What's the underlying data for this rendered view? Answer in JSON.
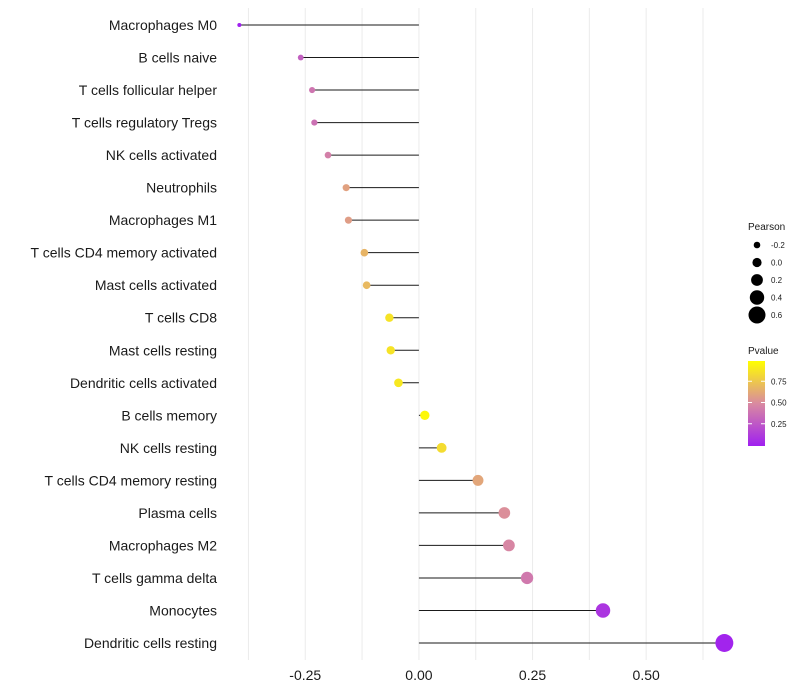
{
  "chart_data": {
    "type": "lollipop",
    "title": "",
    "xlabel": "",
    "ylabel": "",
    "xlim": [
      -0.42,
      0.68
    ],
    "x_ticks": [
      -0.25,
      0.0,
      0.25,
      0.5
    ],
    "x_tick_labels": [
      "-0.25",
      "0.00",
      "0.25",
      "0.50"
    ],
    "grid": "vertical",
    "points": [
      {
        "label": "Macrophages M0",
        "value": -0.395,
        "pvalue": 0.0
      },
      {
        "label": "B cells naive",
        "value": -0.26,
        "pvalue": 0.3
      },
      {
        "label": "T cells follicular helper",
        "value": -0.235,
        "pvalue": 0.4
      },
      {
        "label": "T cells regulatory  Tregs ",
        "value": -0.23,
        "pvalue": 0.38
      },
      {
        "label": "NK cells activated",
        "value": -0.2,
        "pvalue": 0.45
      },
      {
        "label": "Neutrophils",
        "value": -0.16,
        "pvalue": 0.6
      },
      {
        "label": "Macrophages M1",
        "value": -0.155,
        "pvalue": 0.58
      },
      {
        "label": "T cells CD4 memory activated",
        "value": -0.12,
        "pvalue": 0.68
      },
      {
        "label": "Mast cells activated",
        "value": -0.115,
        "pvalue": 0.7
      },
      {
        "label": "T cells CD8",
        "value": -0.065,
        "pvalue": 0.88
      },
      {
        "label": "Mast cells resting",
        "value": -0.062,
        "pvalue": 0.88
      },
      {
        "label": "Dendritic cells activated",
        "value": -0.045,
        "pvalue": 0.9
      },
      {
        "label": "B cells memory",
        "value": 0.013,
        "pvalue": 0.97
      },
      {
        "label": "NK cells resting",
        "value": 0.05,
        "pvalue": 0.85
      },
      {
        "label": "T cells CD4 memory resting",
        "value": 0.13,
        "pvalue": 0.62
      },
      {
        "label": "Plasma cells",
        "value": 0.188,
        "pvalue": 0.52
      },
      {
        "label": "Macrophages M2",
        "value": 0.198,
        "pvalue": 0.48
      },
      {
        "label": "T cells gamma delta",
        "value": 0.238,
        "pvalue": 0.42
      },
      {
        "label": "Monocytes",
        "value": 0.405,
        "pvalue": 0.1
      },
      {
        "label": "Dendritic cells resting",
        "value": 0.672,
        "pvalue": 0.02
      }
    ],
    "legend_size": {
      "title": "Pearson",
      "values": [
        -0.2,
        0.0,
        0.2,
        0.4,
        0.6
      ],
      "labels": [
        "-0.2",
        "0.0",
        "0.2",
        "0.4",
        "0.6"
      ]
    },
    "legend_color": {
      "title": "Pvalue",
      "labels": [
        "0.75",
        "0.50",
        "0.25"
      ],
      "label_values": [
        0.75,
        0.5,
        0.25
      ],
      "low_color": "#a020f0",
      "mid_color": "#d98aa0",
      "high_color": "#ffff00"
    }
  }
}
